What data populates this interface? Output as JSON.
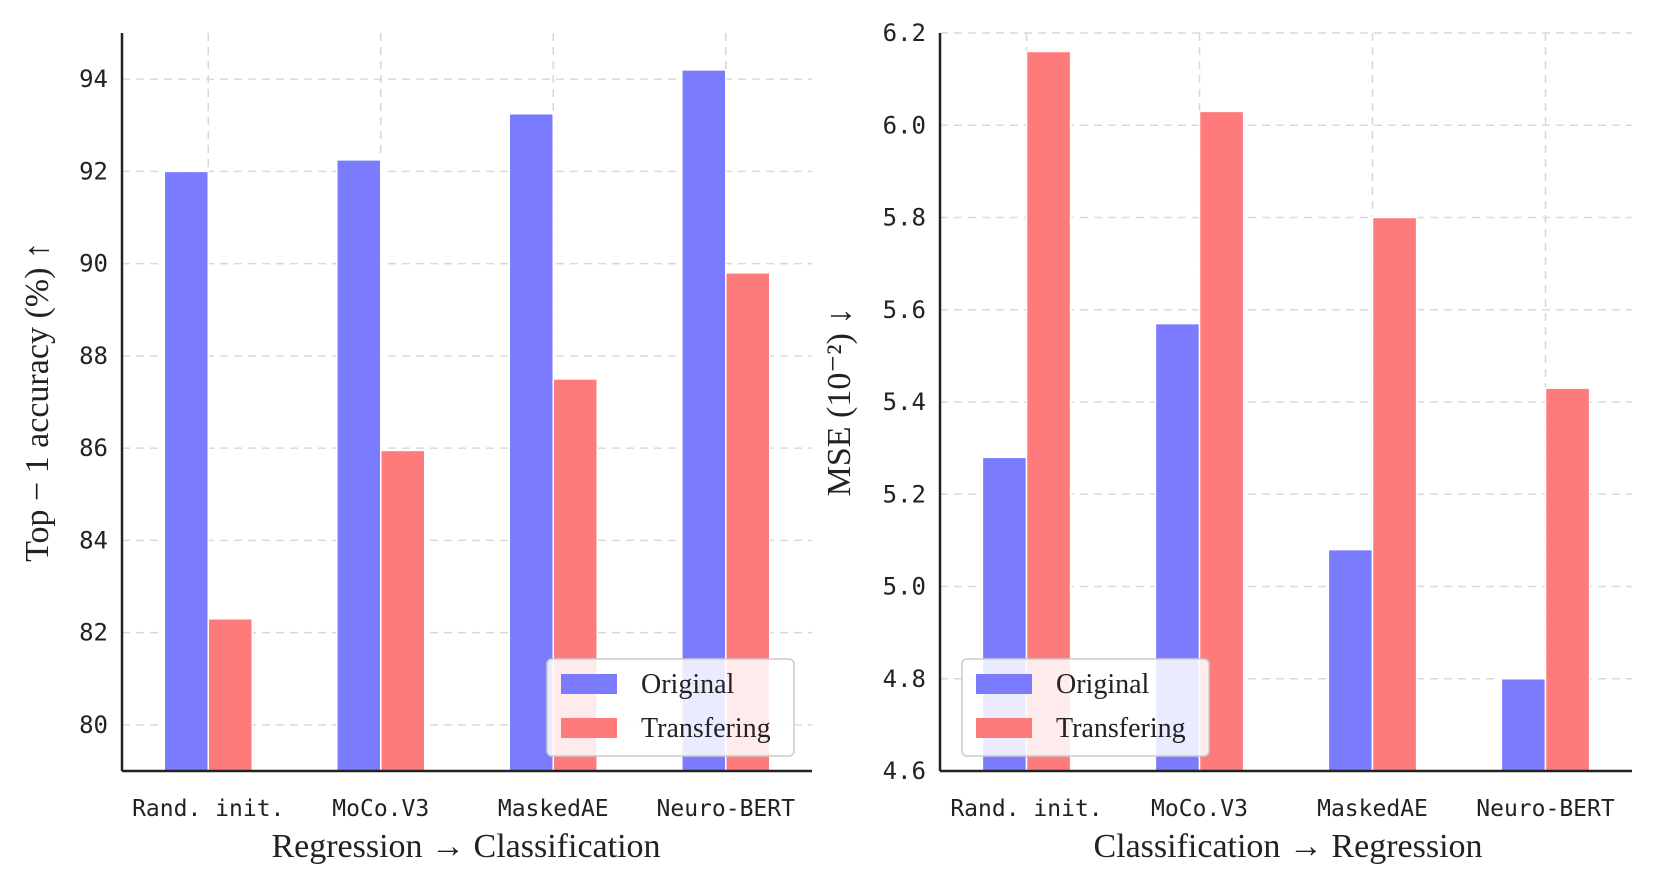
{
  "chart_data": [
    {
      "type": "bar",
      "title": "",
      "categories": [
        "Rand.  init.",
        "MoCo.V3",
        "MaskedAE",
        "Neuro-BERT"
      ],
      "series": [
        {
          "name": "Original",
          "values": [
            92.0,
            92.25,
            93.25,
            94.2
          ],
          "color": "#7b7bff"
        },
        {
          "name": "Transfering",
          "values": [
            82.3,
            85.95,
            87.5,
            89.8
          ],
          "color": "#ff7b7b"
        }
      ],
      "xlabel": "Regression → Classification",
      "ylabel": "Top − 1 accuracy (%) ↑",
      "ylim": [
        79,
        95
      ],
      "yticks": [
        80,
        82,
        84,
        86,
        88,
        90,
        92,
        94
      ],
      "ytick_labels": [
        "80",
        "82",
        "84",
        "86",
        "88",
        "90",
        "92",
        "94"
      ],
      "grid": true,
      "legend": "bottom-right"
    },
    {
      "type": "bar",
      "title": "",
      "categories": [
        "Rand.  init.",
        "MoCo.V3",
        "MaskedAE",
        "Neuro-BERT"
      ],
      "series": [
        {
          "name": "Original",
          "values": [
            5.28,
            5.57,
            5.08,
            4.8
          ],
          "color": "#7b7bff"
        },
        {
          "name": "Transfering",
          "values": [
            6.16,
            6.03,
            5.8,
            5.43
          ],
          "color": "#ff7b7b"
        }
      ],
      "xlabel": "Classification → Regression",
      "ylabel": "MSE (10⁻²) ↓",
      "ylim": [
        4.6,
        6.2
      ],
      "yticks": [
        4.6,
        4.8,
        5.0,
        5.2,
        5.4,
        5.6,
        5.8,
        6.0,
        6.2
      ],
      "ytick_labels": [
        "4.6",
        "4.8",
        "5.0",
        "5.2",
        "5.4",
        "5.6",
        "5.8",
        "6.0",
        "6.2"
      ],
      "grid": true,
      "legend": "bottom-left"
    }
  ]
}
